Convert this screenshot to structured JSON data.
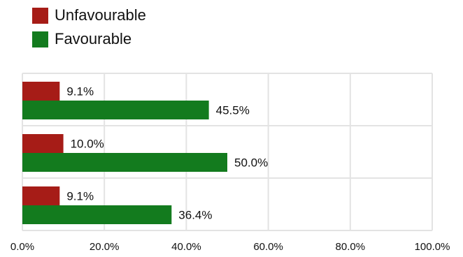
{
  "chart_data": {
    "type": "bar",
    "orientation": "horizontal",
    "categories": [
      "",
      "",
      ""
    ],
    "series": [
      {
        "name": "Unfavourable",
        "color": "#a61c17",
        "values": [
          9.1,
          10.0,
          9.1
        ],
        "labels": [
          "9.1%",
          "10.0%",
          "9.1%"
        ]
      },
      {
        "name": "Favourable",
        "color": "#137b1e",
        "values": [
          45.5,
          50.0,
          36.4
        ],
        "labels": [
          "45.5%",
          "50.0%",
          "36.4%"
        ]
      }
    ],
    "xlim": [
      0,
      100
    ],
    "xticks": [
      0,
      20,
      40,
      60,
      80,
      100
    ],
    "xtick_labels": [
      "0.0%",
      "20.0%",
      "40.0%",
      "60.0%",
      "80.0%",
      "100.0%"
    ],
    "grid": true,
    "legend_position": "top-left",
    "title": "",
    "xlabel": "",
    "ylabel": ""
  }
}
